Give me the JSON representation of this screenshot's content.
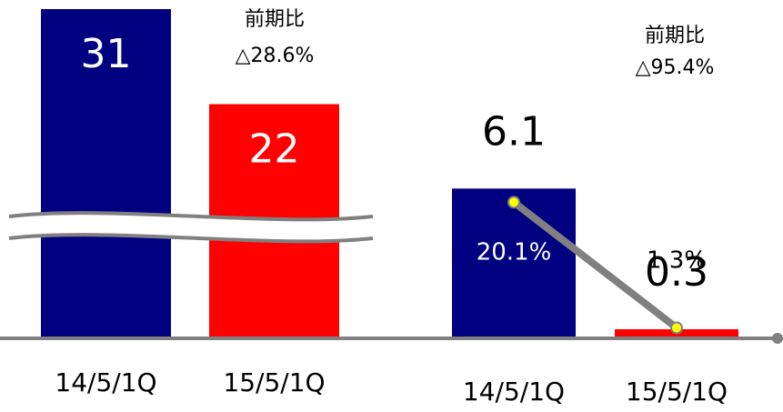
{
  "chart_data": [
    {
      "type": "bar",
      "categories": [
        "14/5/1Q",
        "15/5/1Q"
      ],
      "values": [
        31,
        22
      ],
      "colors": [
        "#000080",
        "#ff0000"
      ],
      "ylim": [
        0,
        31
      ],
      "annotation": [
        "前期比",
        "△28.6%"
      ]
    },
    {
      "type": "bar",
      "categories": [
        "14/5/1Q",
        "15/5/1Q"
      ],
      "values": [
        6.1,
        0.3
      ],
      "colors": [
        "#000080",
        "#ff0000"
      ],
      "ylim": [
        0,
        13.5
      ],
      "annotation": [
        "前期比",
        "△95.4%"
      ],
      "series": [
        {
          "type": "line",
          "axis": "y2",
          "color": "#808080",
          "marker_color": "#ffff00",
          "values": [
            20.1,
            1.3
          ],
          "value_labels": [
            "20.1%",
            "1.3%"
          ]
        }
      ],
      "y2lim": [
        0,
        49
      ]
    }
  ]
}
